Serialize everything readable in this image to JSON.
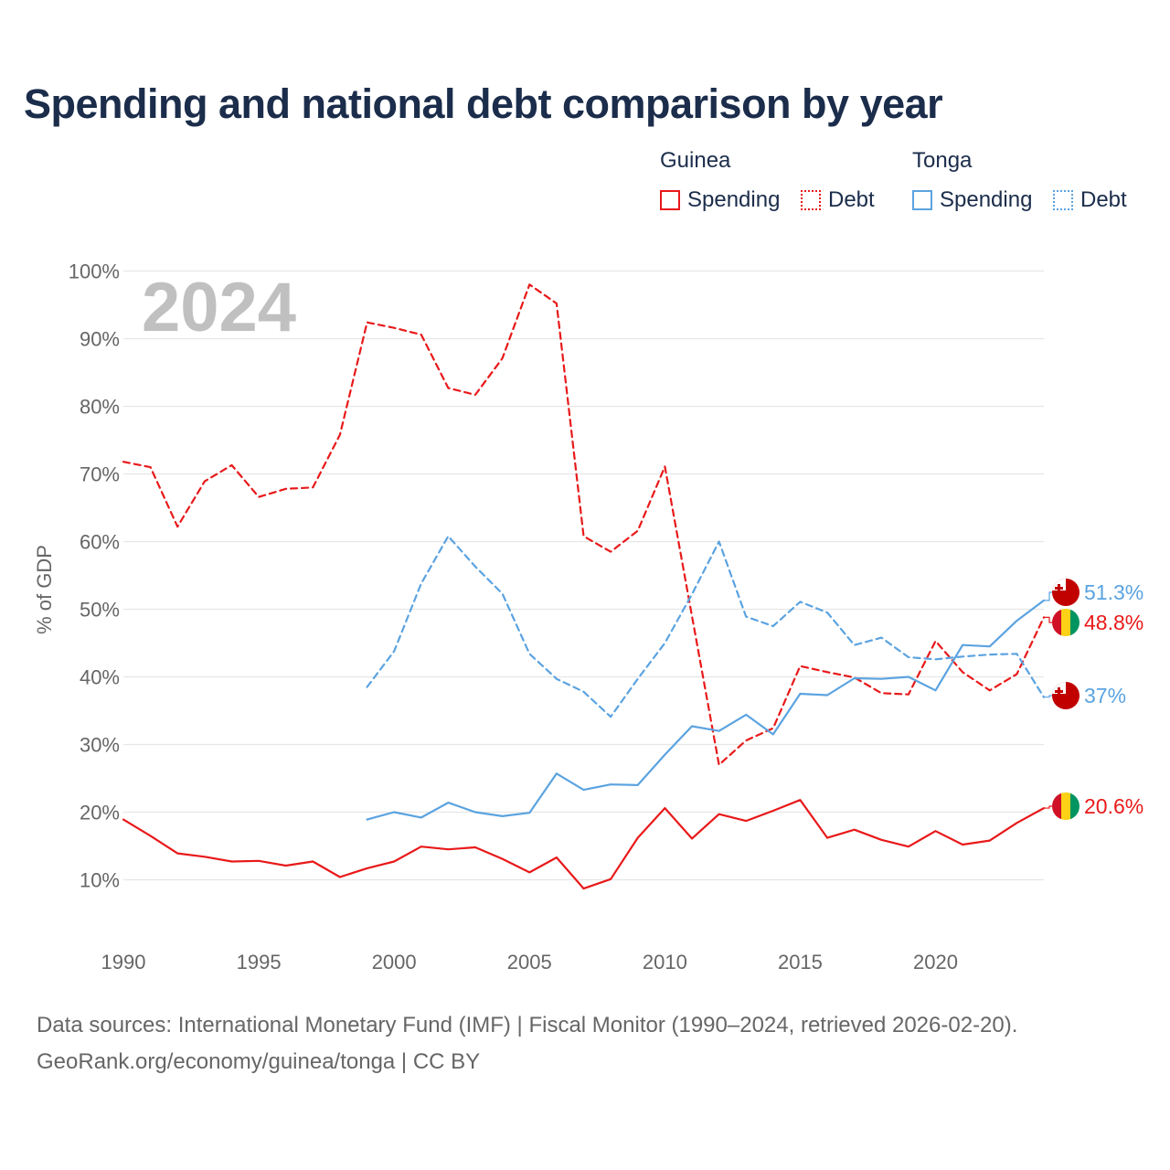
{
  "title": "Spending and national debt comparison by year",
  "legend": {
    "groups": [
      {
        "name": "Guinea",
        "color": "#e8191a",
        "spending_label": "Spending",
        "debt_label": "Debt"
      },
      {
        "name": "Tonga",
        "color": "#5ba3e0",
        "spending_label": "Spending",
        "debt_label": "Debt"
      }
    ]
  },
  "footer": {
    "line1": "Data sources: International Monetary Fund (IMF) | Fiscal Monitor (1990–2024, retrieved 2026-02-20).",
    "line2": "GeoRank.org/economy/guinea/tonga | CC BY"
  },
  "chart_data": {
    "type": "line",
    "title": "Spending and national debt comparison by year",
    "xlabel": "",
    "ylabel": "% of GDP",
    "xlim": [
      1990,
      2024
    ],
    "ylim": [
      0,
      100
    ],
    "grid": true,
    "current_year": "2024",
    "x_ticks": [
      1990,
      1995,
      2000,
      2005,
      2010,
      2015,
      2020
    ],
    "y_ticks": [
      {
        "value": 10,
        "label": "10%"
      },
      {
        "value": 20,
        "label": "20%"
      },
      {
        "value": 30,
        "label": "30%"
      },
      {
        "value": 40,
        "label": "40%"
      },
      {
        "value": 50,
        "label": "50%"
      },
      {
        "value": 60,
        "label": "60%"
      },
      {
        "value": 70,
        "label": "70%"
      },
      {
        "value": 80,
        "label": "80%"
      },
      {
        "value": 90,
        "label": "90%"
      },
      {
        "value": 100,
        "label": "100%"
      }
    ],
    "series": [
      {
        "name": "Guinea Spending",
        "country": "Guinea",
        "metric": "Spending",
        "color": "#e8191a",
        "dashed": false,
        "x": [
          1990,
          1991,
          1992,
          1993,
          1994,
          1995,
          1996,
          1997,
          1998,
          1999,
          2000,
          2001,
          2002,
          2003,
          2004,
          2005,
          2006,
          2007,
          2008,
          2009,
          2010,
          2011,
          2012,
          2013,
          2014,
          2015,
          2016,
          2017,
          2018,
          2019,
          2020,
          2021,
          2022,
          2023,
          2024
        ],
        "values": [
          18.9,
          16.5,
          13.9,
          13.4,
          12.7,
          12.8,
          12.1,
          12.7,
          10.4,
          11.7,
          12.7,
          14.9,
          14.5,
          14.8,
          13.1,
          11.1,
          13.3,
          8.7,
          10.1,
          16.2,
          20.6,
          16.1,
          19.7,
          18.7,
          20.2,
          21.8,
          16.2,
          17.4,
          15.9,
          14.9,
          17.2,
          15.2,
          15.8,
          18.4,
          20.6
        ],
        "end_label": "20.6%",
        "end_value": 20.6
      },
      {
        "name": "Guinea Debt",
        "country": "Guinea",
        "metric": "Debt",
        "color": "#e8191a",
        "dashed": true,
        "x": [
          1990,
          1991,
          1992,
          1993,
          1994,
          1995,
          1996,
          1997,
          1998,
          1999,
          2000,
          2001,
          2002,
          2003,
          2004,
          2005,
          2006,
          2007,
          2008,
          2009,
          2010,
          2011,
          2012,
          2013,
          2014,
          2015,
          2016,
          2017,
          2018,
          2019,
          2020,
          2021,
          2022,
          2023,
          2024
        ],
        "values": [
          71.8,
          71.0,
          62.2,
          68.9,
          71.3,
          66.6,
          67.8,
          68.0,
          75.8,
          92.4,
          91.6,
          90.6,
          82.7,
          81.7,
          87.1,
          98.0,
          95.2,
          60.8,
          58.5,
          61.6,
          71.1,
          49.0,
          27.0,
          30.6,
          32.4,
          41.6,
          40.7,
          39.9,
          37.6,
          37.4,
          45.3,
          40.7,
          38.0,
          40.4,
          48.8
        ],
        "end_label": "48.8%",
        "end_value": 48.8
      },
      {
        "name": "Tonga Spending",
        "country": "Tonga",
        "metric": "Spending",
        "color": "#5ba3e0",
        "dashed": false,
        "x": [
          1999,
          2000,
          2001,
          2002,
          2003,
          2004,
          2005,
          2006,
          2007,
          2008,
          2009,
          2010,
          2011,
          2012,
          2013,
          2014,
          2015,
          2016,
          2017,
          2018,
          2019,
          2020,
          2021,
          2022,
          2023,
          2024
        ],
        "values": [
          18.9,
          20.0,
          19.2,
          21.4,
          20.0,
          19.4,
          19.9,
          25.7,
          23.3,
          24.1,
          24.0,
          28.5,
          32.7,
          32.0,
          34.4,
          31.5,
          37.5,
          37.3,
          39.8,
          39.7,
          40.0,
          38.0,
          44.7,
          44.5,
          48.3,
          51.3
        ],
        "end_label": "51.3%",
        "end_value": 51.3
      },
      {
        "name": "Tonga Debt",
        "country": "Tonga",
        "metric": "Debt",
        "color": "#5ba3e0",
        "dashed": true,
        "x": [
          1999,
          2000,
          2001,
          2002,
          2003,
          2004,
          2005,
          2006,
          2007,
          2008,
          2009,
          2010,
          2011,
          2012,
          2013,
          2014,
          2015,
          2016,
          2017,
          2018,
          2019,
          2020,
          2021,
          2022,
          2023,
          2024
        ],
        "values": [
          38.5,
          43.8,
          53.8,
          60.8,
          56.3,
          52.3,
          43.4,
          39.7,
          37.8,
          34.1,
          39.7,
          45.0,
          52.2,
          60.0,
          48.9,
          47.5,
          51.1,
          49.5,
          44.7,
          45.8,
          42.9,
          42.6,
          43.0,
          43.3,
          43.4,
          37.0
        ],
        "end_label": "37%",
        "end_value": 37.0
      }
    ]
  }
}
